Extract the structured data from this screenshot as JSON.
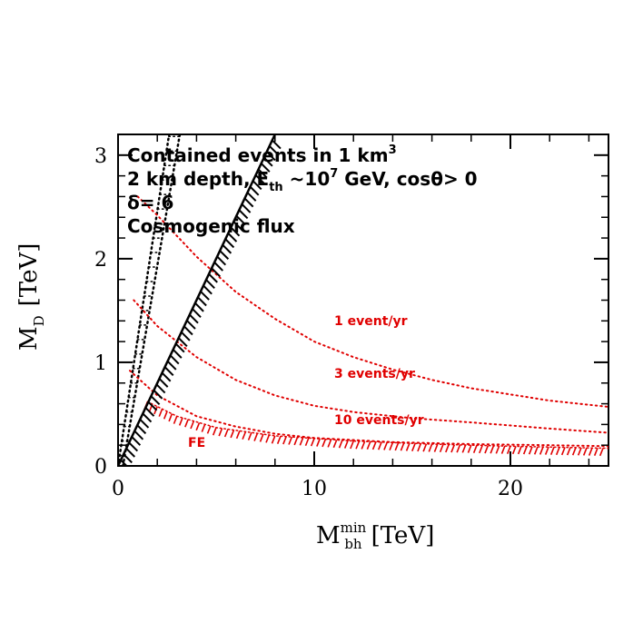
{
  "chart_data": {
    "type": "line",
    "xlabel": "M",
    "xlabel_sub": "bh",
    "xlabel_sup": "min",
    "xlabel_unit": "[TeV]",
    "ylabel": "M",
    "ylabel_sub": "D",
    "ylabel_unit": "[TeV]",
    "xlim": [
      0,
      25
    ],
    "ylim": [
      0,
      3.2
    ],
    "xticks": [
      0,
      10,
      20
    ],
    "yticks": [
      0,
      1,
      2,
      3
    ],
    "grid": false,
    "annotations": {
      "line1": "Contained events in 1 km",
      "line1_sup": "3",
      "line2_a": "2 km depth, E",
      "line2_sub": "th",
      "line2_b": " ~10",
      "line2_sup": "7",
      "line2_c": " GeV, cosθ> 0",
      "line3": "δ= 6",
      "line4": "Cosmogenic flux"
    },
    "region_label": "FE",
    "series": [
      {
        "name": "1 event/yr",
        "color": "#e00000",
        "style": "dotted",
        "points": [
          [
            1.0,
            2.6
          ],
          [
            2,
            2.42
          ],
          [
            4,
            2.02
          ],
          [
            6,
            1.68
          ],
          [
            8,
            1.42
          ],
          [
            10,
            1.2
          ],
          [
            12,
            1.05
          ],
          [
            14,
            0.93
          ],
          [
            16,
            0.83
          ],
          [
            18,
            0.75
          ],
          [
            20,
            0.69
          ],
          [
            22,
            0.63
          ],
          [
            25,
            0.57
          ]
        ]
      },
      {
        "name": "3 events/yr",
        "color": "#e00000",
        "style": "dotted",
        "points": [
          [
            0.8,
            1.6
          ],
          [
            2,
            1.35
          ],
          [
            4,
            1.05
          ],
          [
            6,
            0.83
          ],
          [
            8,
            0.68
          ],
          [
            10,
            0.58
          ],
          [
            12,
            0.52
          ],
          [
            15,
            0.46
          ],
          [
            18,
            0.42
          ],
          [
            22,
            0.36
          ],
          [
            25,
            0.32
          ]
        ]
      },
      {
        "name": "10 events/yr",
        "color": "#e00000",
        "style": "dotted",
        "points": [
          [
            0.6,
            0.92
          ],
          [
            1,
            0.85
          ],
          [
            2,
            0.68
          ],
          [
            4,
            0.48
          ],
          [
            6,
            0.38
          ],
          [
            8,
            0.31
          ],
          [
            10,
            0.27
          ],
          [
            14,
            0.23
          ],
          [
            18,
            0.21
          ],
          [
            22,
            0.2
          ],
          [
            25,
            0.19
          ]
        ]
      }
    ],
    "boundaries": [
      {
        "kind": "hatched-line",
        "color": "#000000",
        "from": [
          0,
          0
        ],
        "to": [
          8.0,
          3.2
        ]
      },
      {
        "kind": "dotted-band",
        "color": "#000000",
        "lines": [
          [
            [
              0,
              0
            ],
            [
              2.6,
              3.2
            ]
          ],
          [
            [
              0.25,
              0
            ],
            [
              3.15,
              3.2
            ]
          ]
        ]
      },
      {
        "kind": "hatched-curve",
        "color": "#e00000",
        "points": [
          [
            1.5,
            0.62
          ],
          [
            3,
            0.48
          ],
          [
            5,
            0.37
          ],
          [
            8,
            0.29
          ],
          [
            12,
            0.24
          ],
          [
            16,
            0.21
          ],
          [
            20,
            0.19
          ],
          [
            25,
            0.17
          ]
        ]
      }
    ]
  }
}
